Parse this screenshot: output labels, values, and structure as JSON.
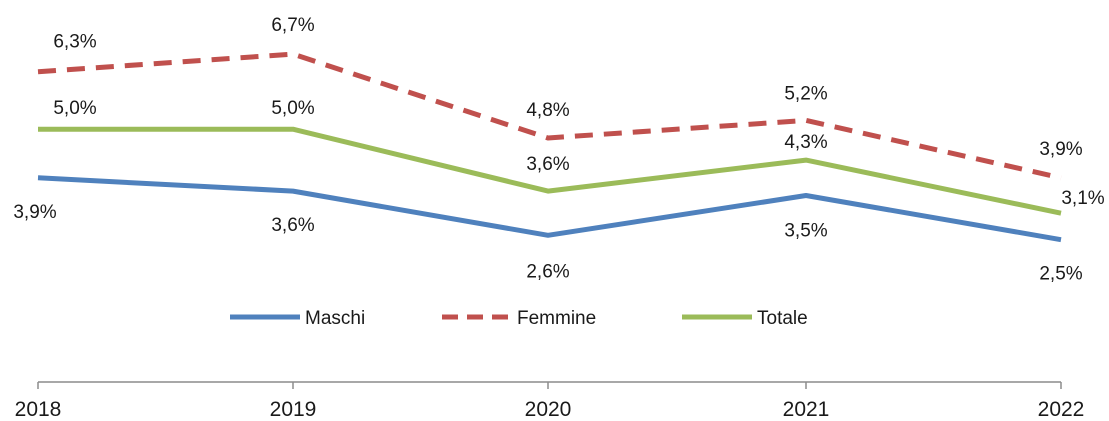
{
  "chart_data": {
    "type": "line",
    "categories": [
      "2018",
      "2019",
      "2020",
      "2021",
      "2022"
    ],
    "ylim": [
      2.0,
      7.0
    ],
    "grid": false,
    "legend_position": "bottom",
    "series": [
      {
        "name": "Maschi",
        "values": [
          3.9,
          3.6,
          2.6,
          3.5,
          2.5
        ],
        "labels": [
          "3,9%",
          "3,6%",
          "2,6%",
          "3,5%",
          "2,5%"
        ],
        "color": "#4f81bd",
        "dash": "solid"
      },
      {
        "name": "Femmine",
        "values": [
          6.3,
          6.7,
          4.8,
          5.2,
          3.9
        ],
        "labels": [
          "6,3%",
          "6,7%",
          "4,8%",
          "5,2%",
          "3,9%"
        ],
        "color": "#c0504d",
        "dash": "dashed"
      },
      {
        "name": "Totale",
        "values": [
          5.0,
          5.0,
          3.6,
          4.3,
          3.1
        ],
        "labels": [
          "5,0%",
          "5,0%",
          "3,6%",
          "4,3%",
          "3,1%"
        ],
        "color": "#9bbb59",
        "dash": "solid"
      }
    ]
  }
}
